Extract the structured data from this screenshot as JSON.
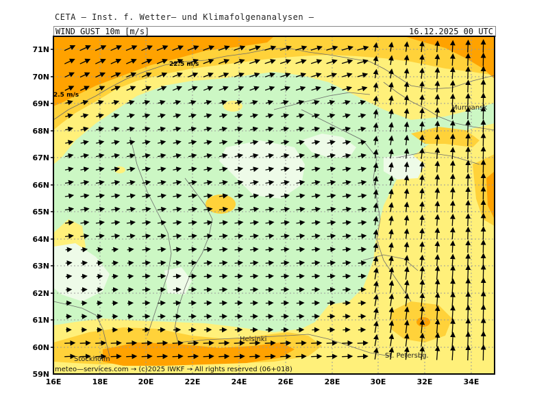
{
  "header": {
    "title": "CETA — Inst. f. Wetter— und Klimafolgenanalysen —",
    "variable": "WIND_GUST_10m_[m/s]",
    "date": "16.12.2025 00 UTC"
  },
  "map": {
    "lat_labels": [
      "71N",
      "70N",
      "69N",
      "68N",
      "67N",
      "66N",
      "65N",
      "64N",
      "63N",
      "62N",
      "61N",
      "60N",
      "59N"
    ],
    "lon_labels": [
      "16E",
      "18E",
      "20E",
      "22E",
      "24E",
      "26E",
      "28E",
      "30E",
      "32E",
      "34E"
    ],
    "contour_labels": [
      "22.5 m/s",
      "2.5 m/s"
    ],
    "cities": [
      "Murmansk",
      "Helsinki",
      "Stockholm",
      "St. Petersbg."
    ],
    "colors": {
      "very_light_green": "#eefbe8",
      "light_green": "#ccf7c4",
      "light_yellow": "#fff07a",
      "yellow": "#ffd23a",
      "orange": "#ffa200",
      "grid": "#9a9a9a",
      "coast": "#6a6a6a"
    }
  },
  "footer": {
    "credit": "meteo—services.com → (c)2025 IWKF → All rights reserved (06+018)"
  }
}
